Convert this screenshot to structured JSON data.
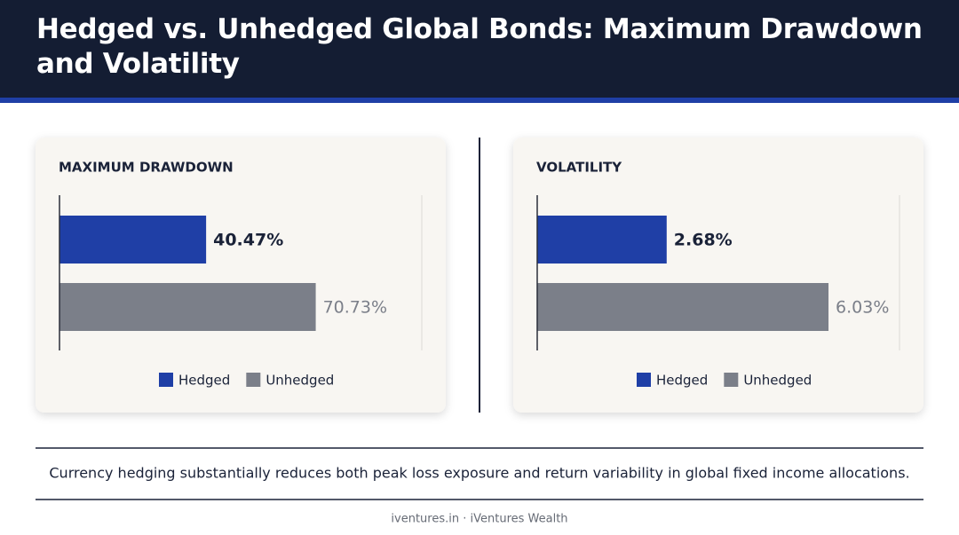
{
  "title": "Hedged vs. Unhedged Global Bonds: Maximum Drawdown and Volatility",
  "caption": "Currency hedging substantially reduces both peak loss exposure and return variability in global fixed income allocations.",
  "footer": "iventures.in · iVentures Wealth",
  "chart_data": [
    {
      "type": "hbar",
      "title": "MAXIMUM DRAWDOWN",
      "xlim": [
        0,
        100
      ],
      "series": [
        {
          "name": "Hedged",
          "color": "#1f3fa6",
          "values": [
            40.47
          ],
          "value_labels": [
            "40.47%"
          ]
        },
        {
          "name": "Unhedged",
          "color": "#7b7f89",
          "values": [
            70.73
          ],
          "value_labels": [
            "70.73%"
          ]
        }
      ]
    },
    {
      "type": "hbar",
      "title": "VOLATILITY",
      "xlim": [
        0,
        7.5
      ],
      "series": [
        {
          "name": "Hedged",
          "color": "#1f3fa6",
          "values": [
            2.68
          ],
          "value_labels": [
            "2.68%"
          ]
        },
        {
          "name": "Unhedged",
          "color": "#7b7f89",
          "values": [
            6.03
          ],
          "value_labels": [
            "6.03%"
          ]
        }
      ]
    }
  ]
}
